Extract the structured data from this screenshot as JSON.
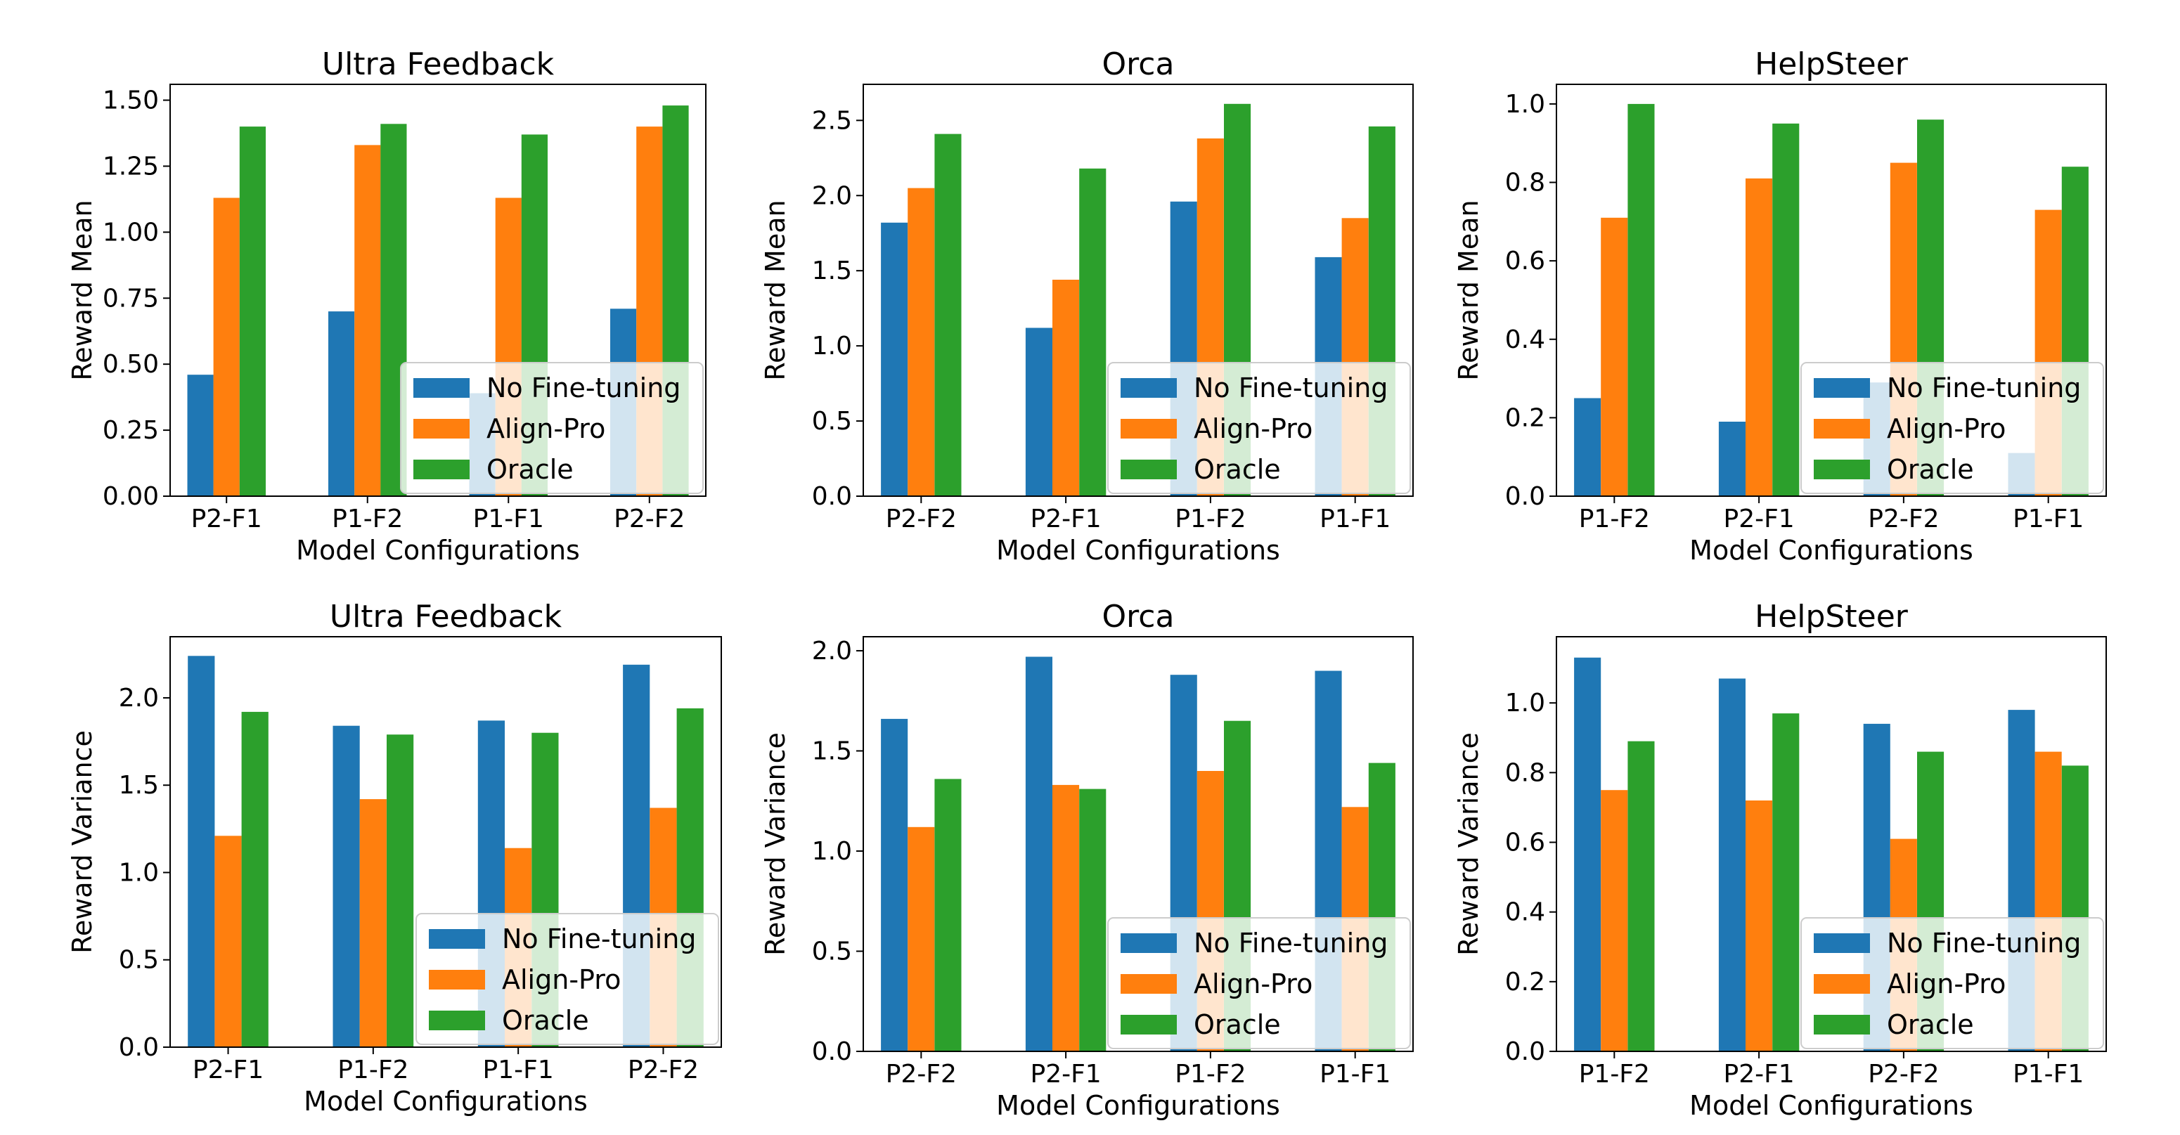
{
  "colors": {
    "no_finetuning": "#1f77b4",
    "align_pro": "#ff7f0e",
    "oracle": "#2ca02c"
  },
  "chart_data": [
    {
      "type": "bar",
      "title": "Ultra Feedback",
      "xlabel": "Model Configurations",
      "ylabel": "Reward Mean",
      "categories": [
        "P2-F1",
        "P1-F2",
        "P1-F1",
        "P2-F2"
      ],
      "ylim": [
        0,
        1.56
      ],
      "yticks": [
        0,
        0.25,
        0.5,
        0.75,
        1.0,
        1.25,
        1.5
      ],
      "ytick_labels": [
        "0.00",
        "0.25",
        "0.50",
        "0.75",
        "1.00",
        "1.25",
        "1.50"
      ],
      "series": [
        {
          "name": "No Fine-tuning",
          "values": [
            0.46,
            0.7,
            0.39,
            0.71
          ]
        },
        {
          "name": "Align-Pro",
          "values": [
            1.13,
            1.33,
            1.13,
            1.4
          ]
        },
        {
          "name": "Oracle",
          "values": [
            1.4,
            1.41,
            1.37,
            1.48
          ]
        }
      ],
      "legend": "lower right"
    },
    {
      "type": "bar",
      "title": "Orca",
      "xlabel": "Model Configurations",
      "ylabel": "Reward Mean",
      "categories": [
        "P2-F2",
        "P2-F1",
        "P1-F2",
        "P1-F1"
      ],
      "ylim": [
        0,
        2.74
      ],
      "yticks": [
        0,
        0.5,
        1.0,
        1.5,
        2.0,
        2.5
      ],
      "ytick_labels": [
        "0.0",
        "0.5",
        "1.0",
        "1.5",
        "2.0",
        "2.5"
      ],
      "series": [
        {
          "name": "No Fine-tuning",
          "values": [
            1.82,
            1.12,
            1.96,
            1.59
          ]
        },
        {
          "name": "Align-Pro",
          "values": [
            2.05,
            1.44,
            2.38,
            1.85
          ]
        },
        {
          "name": "Oracle",
          "values": [
            2.41,
            2.18,
            2.61,
            2.46
          ]
        }
      ],
      "legend": "lower right"
    },
    {
      "type": "bar",
      "title": "HelpSteer",
      "xlabel": "Model Configurations",
      "ylabel": "Reward Mean",
      "categories": [
        "P1-F2",
        "P2-F1",
        "P2-F2",
        "P1-F1"
      ],
      "ylim": [
        0,
        1.05
      ],
      "yticks": [
        0,
        0.2,
        0.4,
        0.6,
        0.8,
        1.0
      ],
      "ytick_labels": [
        "0.0",
        "0.2",
        "0.4",
        "0.6",
        "0.8",
        "1.0"
      ],
      "series": [
        {
          "name": "No Fine-tuning",
          "values": [
            0.25,
            0.19,
            0.29,
            0.11
          ]
        },
        {
          "name": "Align-Pro",
          "values": [
            0.71,
            0.81,
            0.85,
            0.73
          ]
        },
        {
          "name": "Oracle",
          "values": [
            1.0,
            0.95,
            0.96,
            0.84
          ]
        }
      ],
      "legend": "lower right"
    },
    {
      "type": "bar",
      "title": "Ultra Feedback",
      "xlabel": "Model Configurations",
      "ylabel": "Reward Variance",
      "categories": [
        "P2-F1",
        "P1-F2",
        "P1-F1",
        "P2-F2"
      ],
      "ylim": [
        0,
        2.35
      ],
      "yticks": [
        0,
        0.5,
        1.0,
        1.5,
        2.0
      ],
      "ytick_labels": [
        "0.0",
        "0.5",
        "1.0",
        "1.5",
        "2.0"
      ],
      "series": [
        {
          "name": "No Fine-tuning",
          "values": [
            2.24,
            1.84,
            1.87,
            2.19
          ]
        },
        {
          "name": "Align-Pro",
          "values": [
            1.21,
            1.42,
            1.14,
            1.37
          ]
        },
        {
          "name": "Oracle",
          "values": [
            1.92,
            1.79,
            1.8,
            1.94
          ]
        }
      ],
      "legend": "lower right"
    },
    {
      "type": "bar",
      "title": "Orca",
      "xlabel": "Model Configurations",
      "ylabel": "Reward Variance",
      "categories": [
        "P2-F2",
        "P2-F1",
        "P1-F2",
        "P1-F1"
      ],
      "ylim": [
        0,
        2.07
      ],
      "yticks": [
        0,
        0.5,
        1.0,
        1.5,
        2.0
      ],
      "ytick_labels": [
        "0.0",
        "0.5",
        "1.0",
        "1.5",
        "2.0"
      ],
      "series": [
        {
          "name": "No Fine-tuning",
          "values": [
            1.66,
            1.97,
            1.88,
            1.9
          ]
        },
        {
          "name": "Align-Pro",
          "values": [
            1.12,
            1.33,
            1.4,
            1.22
          ]
        },
        {
          "name": "Oracle",
          "values": [
            1.36,
            1.31,
            1.65,
            1.44
          ]
        }
      ],
      "legend": "lower right"
    },
    {
      "type": "bar",
      "title": "HelpSteer",
      "xlabel": "Model Configurations",
      "ylabel": "Reward Variance",
      "categories": [
        "P1-F2",
        "P2-F1",
        "P2-F2",
        "P1-F1"
      ],
      "ylim": [
        0,
        1.19
      ],
      "yticks": [
        0,
        0.2,
        0.4,
        0.6,
        0.8,
        1.0
      ],
      "ytick_labels": [
        "0.0",
        "0.2",
        "0.4",
        "0.6",
        "0.8",
        "1.0"
      ],
      "series": [
        {
          "name": "No Fine-tuning",
          "values": [
            1.13,
            1.07,
            0.94,
            0.98
          ]
        },
        {
          "name": "Align-Pro",
          "values": [
            0.75,
            0.72,
            0.61,
            0.86
          ]
        },
        {
          "name": "Oracle",
          "values": [
            0.89,
            0.97,
            0.86,
            0.82
          ]
        }
      ],
      "legend": "lower right"
    }
  ]
}
